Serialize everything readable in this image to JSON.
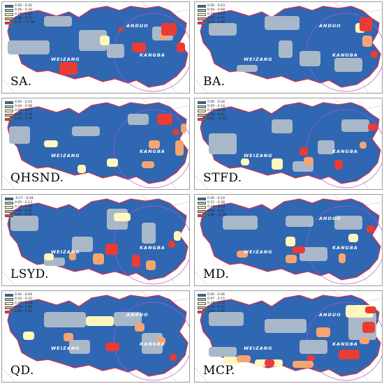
{
  "colors": {
    "c1": "#2f67b2",
    "c2": "#a9b8c9",
    "c3": "#fff7bd",
    "c4": "#f5a571",
    "c5": "#ea3b34",
    "boundary": "#e0304a",
    "circle": "#b455d6",
    "bg_outline": "#d8d8d8"
  },
  "regions": {
    "weizang": "WEIZANG",
    "anduo": "ANDUO",
    "kangba": "KANGBA"
  },
  "panels": [
    {
      "label": "SA.",
      "legend": [
        "0.00 - 0.05",
        "0.06 - 0.20",
        "0.21 - 0.45",
        "0.46 - 0.75",
        "0.76 - 71.09"
      ]
    },
    {
      "label": "BA.",
      "legend": [
        "0.00 - 0.03",
        "0.04 - 0.09",
        "0.10 - 0.19",
        "0.20 - 0.37",
        "0.38 - 0.89"
      ]
    },
    {
      "label": "QHSND.",
      "legend": [
        "0.00 - 0.03",
        "0.04 - 0.08",
        "0.09 - 0.17",
        "0.18 - 0.39",
        "0.40 - 0.79"
      ]
    },
    {
      "label": "STFD.",
      "legend": [
        "0.00 - 0.04",
        "0.05 - 0.14",
        "0.15 - 0.34",
        "0.35 - 0.61",
        "0.62 - 12.12"
      ]
    },
    {
      "label": "LSYD.",
      "legend": [
        "-0.17 - 0.04",
        "0.05 - 0.13",
        "0.14 - 0.29",
        "0.30 - 0.61",
        "0.62 - 6.30"
      ]
    },
    {
      "label": "MD.",
      "legend": [
        "0.00 - 0.10",
        "0.11 - 0.28",
        "0.29 - 0.63",
        "0.64 - 3.87",
        "3.88 - 14.89"
      ]
    },
    {
      "label": "QD.",
      "legend": [
        "0.00 - 0.09",
        "0.10 - 0.23",
        "0.24 - 0.58",
        "0.59 - 2.82",
        "2.83 - 5.82"
      ]
    },
    {
      "label": "MCP.",
      "legend": [
        "0.00 - 0.06",
        "0.07 - 0.15",
        "0.16 - 0.25",
        "0.26 - 0.43",
        "0.44 - 1.29"
      ]
    }
  ]
}
